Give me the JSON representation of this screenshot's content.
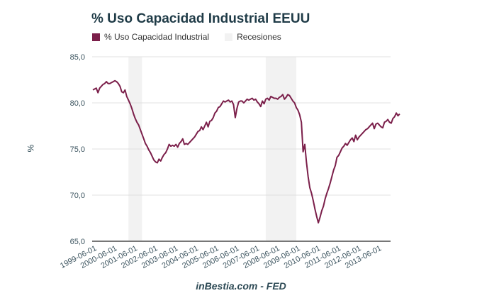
{
  "chart_data": {
    "type": "line",
    "title": "% Uso Capacidad Industrial EEUU",
    "xlabel": "",
    "ylabel": "%",
    "ylim": [
      65,
      85
    ],
    "yticks": [
      85,
      80,
      75,
      70,
      65
    ],
    "ytick_labels": [
      "85,0",
      "80,0",
      "75,0",
      "70,0",
      "65,0"
    ],
    "xtick_labels": [
      "1999-06-01",
      "2000-06-01",
      "2001-06-01",
      "2002-06-01",
      "2003-06-01",
      "2004-06-01",
      "2005-06-01",
      "2006-06-01",
      "2007-06-01",
      "2008-06-01",
      "2009-06-01",
      "2010-06-01",
      "2011-06-01",
      "2012-06-01",
      "2013-06-01"
    ],
    "x_start": "1999-06",
    "frequency": "monthly",
    "grid": true,
    "legend_position": "top-left",
    "series": [
      {
        "name": "% Uso Capacidad Industrial",
        "color": "#7b1f4a",
        "values_note": "Reconstructed monthly series: only a few anchor points were read from the chart (start ~81.4, 2000 peak ~82.3, late-2001 trough ~73.5, mid-2000s plateau ~80.5, mid-2009 trough ~67.0, end ~78.8); intermediate values are interpolated estimates, not exact readings.",
        "values": [
          81.4,
          81.5,
          81.6,
          81.1,
          81.6,
          81.8,
          82.0,
          82.1,
          82.3,
          82.1,
          82.1,
          82.2,
          82.3,
          82.4,
          82.3,
          82.1,
          81.8,
          81.2,
          81.1,
          81.4,
          80.7,
          80.3,
          79.9,
          79.4,
          78.8,
          78.3,
          77.9,
          77.6,
          77.1,
          76.6,
          76.1,
          75.6,
          75.3,
          74.9,
          74.6,
          74.2,
          73.8,
          73.6,
          73.5,
          73.9,
          73.7,
          74.1,
          74.4,
          74.6,
          75.0,
          75.5,
          75.3,
          75.4,
          75.3,
          75.5,
          75.2,
          75.6,
          75.8,
          76.1,
          75.5,
          75.6,
          75.5,
          75.7,
          75.9,
          76.1,
          76.3,
          76.6,
          76.9,
          77.0,
          77.4,
          77.1,
          77.5,
          77.9,
          77.4,
          78.0,
          78.1,
          78.4,
          78.9,
          79.1,
          79.5,
          79.6,
          79.9,
          80.2,
          80.1,
          80.2,
          80.3,
          80.1,
          80.2,
          79.8,
          78.4,
          79.4,
          80.1,
          80.2,
          80.2,
          80.0,
          80.2,
          80.4,
          80.3,
          80.4,
          80.5,
          80.3,
          80.4,
          80.1,
          79.9,
          79.6,
          80.2,
          79.9,
          80.4,
          80.5,
          80.3,
          80.7,
          80.6,
          80.5,
          80.5,
          80.4,
          80.6,
          80.7,
          80.9,
          80.4,
          80.6,
          80.9,
          80.8,
          80.5,
          80.2,
          80.0,
          79.5,
          79.2,
          78.7,
          77.9,
          74.7,
          75.5,
          73.6,
          72.0,
          70.8,
          70.2,
          69.4,
          68.5,
          67.7,
          67.0,
          67.6,
          68.3,
          68.8,
          69.6,
          70.2,
          70.7,
          71.3,
          72.0,
          72.7,
          73.2,
          74.1,
          74.3,
          74.7,
          75.1,
          75.3,
          75.6,
          75.4,
          75.7,
          76.0,
          76.2,
          75.8,
          76.5,
          76.0,
          76.3,
          76.5,
          76.7,
          76.9,
          77.1,
          77.2,
          77.4,
          77.6,
          77.8,
          77.2,
          77.7,
          77.8,
          77.6,
          77.4,
          77.3,
          77.9,
          78.0,
          78.2,
          77.9,
          77.8,
          78.3,
          78.5,
          78.9,
          78.6,
          78.8
        ]
      }
    ],
    "shaded_regions": [
      {
        "name": "Recesiones",
        "start": "2001-03",
        "end": "2001-11",
        "color": "#f2f2f2"
      },
      {
        "name": "Recesiones",
        "start": "2007-12",
        "end": "2009-06",
        "color": "#f2f2f2"
      }
    ]
  },
  "legend": [
    {
      "label": "% Uso Capacidad Industrial",
      "color": "#7b1f4a"
    },
    {
      "label": "Recesiones",
      "color": "#f2f2f2"
    }
  ],
  "footer": "inBestia.com - FED"
}
